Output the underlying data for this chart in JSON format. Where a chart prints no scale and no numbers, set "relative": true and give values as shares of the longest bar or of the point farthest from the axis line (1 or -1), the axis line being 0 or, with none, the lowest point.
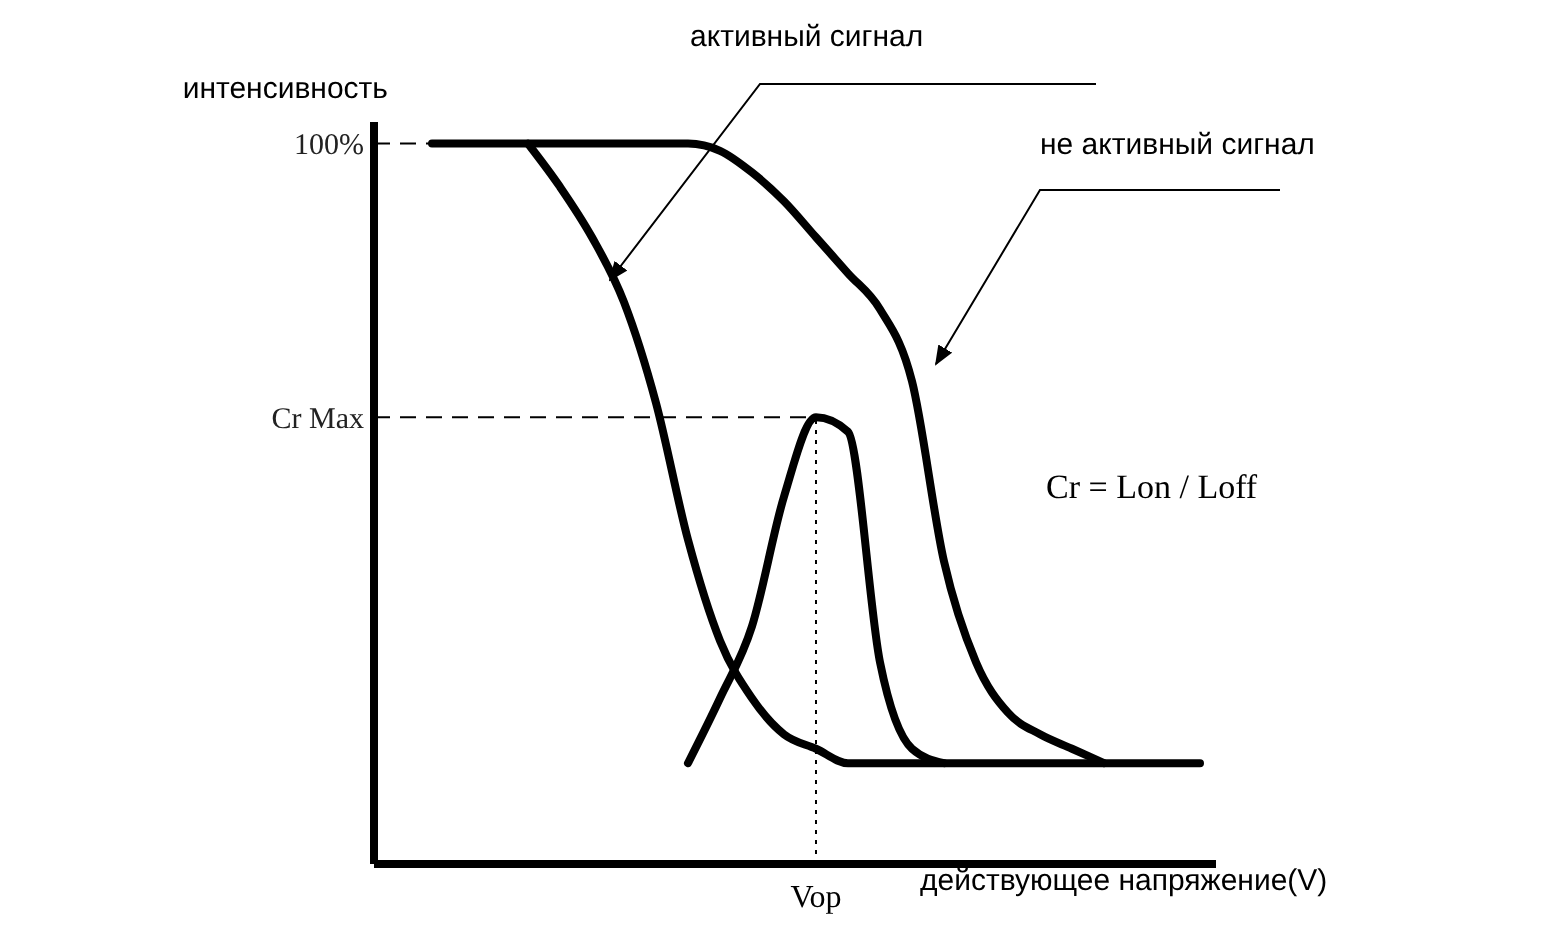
{
  "chart_data": {
    "type": "line",
    "relative": true,
    "xlabel": "действующее напряжение(V)",
    "ylabel": "интенсивность",
    "categories": [
      null,
      null,
      null,
      null,
      null,
      null,
      null,
      null,
      null,
      null,
      null,
      null,
      null,
      null,
      null,
      null,
      null,
      null,
      null,
      null,
      null,
      null,
      null,
      null,
      null
    ],
    "series": [
      {
        "name": "активный сигнал",
        "color": "#000000",
        "values": [
          null,
          null,
          null,
          1,
          0.94,
          0.87,
          0.78,
          0.64,
          0.45,
          0.31,
          0.23,
          0.18,
          0.16,
          0.14,
          0.14,
          0.14,
          0.14,
          0.14,
          0.14,
          0.14,
          0.14,
          0.14,
          0.14,
          0.14,
          0.14
        ]
      },
      {
        "name": "не активный сигнал",
        "color": "#000000",
        "values": [
          1,
          1,
          1,
          1,
          1,
          1,
          1,
          1,
          1,
          0.99,
          0.96,
          0.92,
          0.87,
          0.82,
          0.77,
          0.67,
          0.42,
          0.28,
          0.21,
          0.18,
          0.16,
          0.14,
          null,
          null,
          null
        ]
      },
      {
        "color": "#000000",
        "values": [
          null,
          null,
          null,
          null,
          null,
          null,
          null,
          null,
          0.14,
          0.23,
          0.33,
          0.51,
          0.62,
          0.6,
          0.28,
          0.16,
          0.14,
          null,
          null,
          null,
          null,
          null,
          null,
          null,
          null
        ]
      }
    ],
    "ref_lines": [
      {
        "axis": "y",
        "value": 1,
        "label": "100%",
        "line_style": "dashed"
      },
      {
        "axis": "y",
        "value": 0.62,
        "label": "Cr Max",
        "line_style": "dashed"
      },
      {
        "axis": "x",
        "value": null,
        "label": "Vop",
        "line_style": "dotted"
      }
    ],
    "annotations": [
      "Cr = Lon / Loff"
    ],
    "legend": false,
    "marker": "none",
    "line_style": "solid",
    "grid": false
  }
}
